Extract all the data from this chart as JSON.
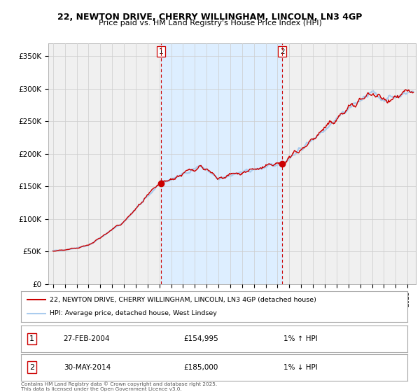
{
  "title_line1": "22, NEWTON DRIVE, CHERRY WILLINGHAM, LINCOLN, LN3 4GP",
  "title_line2": "Price paid vs. HM Land Registry's House Price Index (HPI)",
  "ylim": [
    0,
    370000
  ],
  "yticks": [
    0,
    50000,
    100000,
    150000,
    200000,
    250000,
    300000,
    350000
  ],
  "ytick_labels": [
    "£0",
    "£50K",
    "£100K",
    "£150K",
    "£200K",
    "£250K",
    "£300K",
    "£350K"
  ],
  "sale1_date_num": 2004.15,
  "sale1_price": 154995,
  "sale1_label": "1",
  "sale1_date_str": "27-FEB-2004",
  "sale1_price_str": "£154,995",
  "sale1_hpi_str": "1% ↑ HPI",
  "sale2_date_num": 2014.41,
  "sale2_price": 185000,
  "sale2_label": "2",
  "sale2_date_str": "30-MAY-2014",
  "sale2_price_str": "£185,000",
  "sale2_hpi_str": "1% ↓ HPI",
  "legend_line1": "22, NEWTON DRIVE, CHERRY WILLINGHAM, LINCOLN, LN3 4GP (detached house)",
  "legend_line2": "HPI: Average price, detached house, West Lindsey",
  "copyright_text": "Contains HM Land Registry data © Crown copyright and database right 2025.\nThis data is licensed under the Open Government Licence v3.0.",
  "price_line_color": "#cc0000",
  "hpi_line_color": "#aaccee",
  "sale_marker_color": "#cc0000",
  "vline_color": "#cc0000",
  "grid_color": "#cccccc",
  "bg_color": "#ffffff",
  "plot_bg_color": "#f0f0f0",
  "shade_color": "#ddeeff",
  "xlim_start": 1994.6,
  "xlim_end": 2025.7
}
